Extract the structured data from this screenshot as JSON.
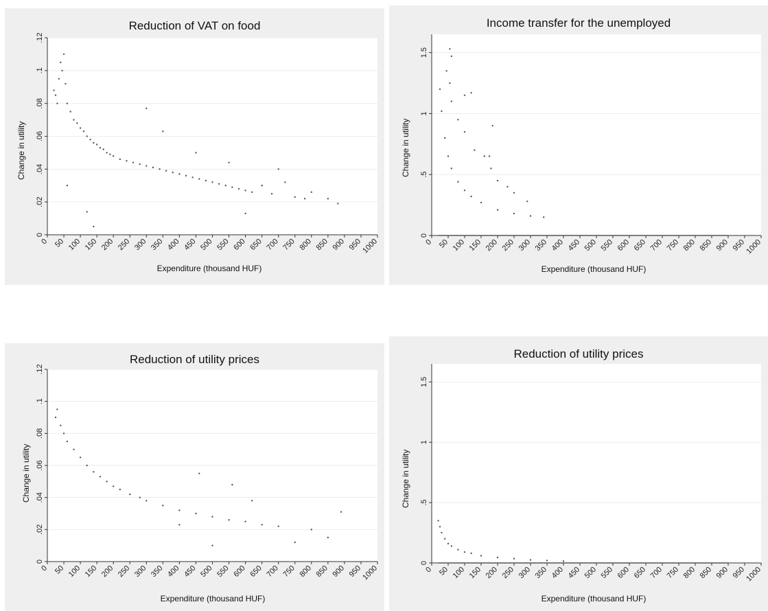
{
  "chart_data": [
    {
      "type": "scatter",
      "title": "Reduction of VAT on food",
      "xlabel": "Expenditure (thousand HUF)",
      "ylabel": "Change in utility",
      "xlim": [
        0,
        1000
      ],
      "ylim": [
        0,
        0.12
      ],
      "x_ticks": [
        "0",
        "50",
        "100",
        "150",
        "200",
        "250",
        "300",
        "350",
        "400",
        "450",
        "500",
        "550",
        "600",
        "650",
        "700",
        "750",
        "800",
        "850",
        "900",
        "950",
        "1000"
      ],
      "y_ticks": [
        "0",
        ".02",
        ".04",
        ".06",
        ".08",
        ".1",
        ".12"
      ],
      "grid": "horizontal",
      "series": [
        {
          "points": [
            [
              20,
              0.088
            ],
            [
              25,
              0.085
            ],
            [
              30,
              0.08
            ],
            [
              35,
              0.095
            ],
            [
              40,
              0.105
            ],
            [
              45,
              0.1
            ],
            [
              50,
              0.11
            ],
            [
              55,
              0.092
            ],
            [
              60,
              0.08
            ],
            [
              70,
              0.075
            ],
            [
              80,
              0.07
            ],
            [
              90,
              0.068
            ],
            [
              100,
              0.065
            ],
            [
              110,
              0.063
            ],
            [
              120,
              0.06
            ],
            [
              130,
              0.058
            ],
            [
              140,
              0.056
            ],
            [
              150,
              0.055
            ],
            [
              160,
              0.053
            ],
            [
              170,
              0.052
            ],
            [
              180,
              0.05
            ],
            [
              190,
              0.049
            ],
            [
              200,
              0.048
            ],
            [
              220,
              0.046
            ],
            [
              240,
              0.045
            ],
            [
              260,
              0.044
            ],
            [
              280,
              0.043
            ],
            [
              300,
              0.042
            ],
            [
              320,
              0.041
            ],
            [
              340,
              0.04
            ],
            [
              360,
              0.039
            ],
            [
              380,
              0.038
            ],
            [
              400,
              0.037
            ],
            [
              420,
              0.036
            ],
            [
              440,
              0.035
            ],
            [
              460,
              0.034
            ],
            [
              480,
              0.033
            ],
            [
              500,
              0.032
            ],
            [
              520,
              0.031
            ],
            [
              540,
              0.03
            ],
            [
              560,
              0.029
            ],
            [
              580,
              0.028
            ],
            [
              600,
              0.027
            ],
            [
              620,
              0.026
            ],
            [
              650,
              0.03
            ],
            [
              680,
              0.025
            ],
            [
              700,
              0.04
            ],
            [
              720,
              0.032
            ],
            [
              750,
              0.023
            ],
            [
              780,
              0.022
            ],
            [
              800,
              0.026
            ],
            [
              850,
              0.022
            ],
            [
              880,
              0.019
            ],
            [
              120,
              0.014
            ],
            [
              140,
              0.005
            ],
            [
              60,
              0.03
            ],
            [
              300,
              0.077
            ],
            [
              350,
              0.063
            ],
            [
              450,
              0.05
            ],
            [
              550,
              0.044
            ],
            [
              600,
              0.013
            ]
          ]
        }
      ]
    },
    {
      "type": "scatter",
      "title": "Income transfer for the unemployed",
      "xlabel": "Expenditure (thousand HUF)",
      "ylabel": "Change in utility",
      "xlim": [
        0,
        1000
      ],
      "ylim": [
        0,
        1.65
      ],
      "x_ticks": [
        "0",
        "50",
        "100",
        "150",
        "200",
        "250",
        "300",
        "350",
        "400",
        "450",
        "500",
        "550",
        "600",
        "650",
        "700",
        "750",
        "800",
        "850",
        "900",
        "950",
        "1000"
      ],
      "y_ticks": [
        "0",
        ".5",
        "1",
        "1.5"
      ],
      "grid": "horizontal",
      "series": [
        {
          "points": [
            [
              25,
              1.2
            ],
            [
              30,
              1.02
            ],
            [
              40,
              0.8
            ],
            [
              50,
              0.65
            ],
            [
              60,
              0.55
            ],
            [
              80,
              0.44
            ],
            [
              100,
              0.37
            ],
            [
              120,
              0.32
            ],
            [
              150,
              0.27
            ],
            [
              200,
              0.21
            ],
            [
              250,
              0.18
            ],
            [
              300,
              0.16
            ],
            [
              340,
              0.15
            ]
          ]
        },
        {
          "points": [
            [
              45,
              1.35
            ],
            [
              55,
              1.25
            ],
            [
              60,
              1.1
            ],
            [
              80,
              0.95
            ],
            [
              100,
              0.85
            ],
            [
              130,
              0.7
            ],
            [
              160,
              0.65
            ],
            [
              180,
              0.55
            ],
            [
              200,
              0.45
            ],
            [
              250,
              0.35
            ],
            [
              290,
              0.28
            ]
          ]
        },
        {
          "points": [
            [
              55,
              1.53
            ],
            [
              60,
              1.47
            ],
            [
              100,
              1.15
            ],
            [
              120,
              1.17
            ],
            [
              185,
              0.9
            ],
            [
              175,
              0.65
            ],
            [
              230,
              0.4
            ]
          ]
        },
        {
          "points": [
            [
              20,
              0
            ],
            [
              900,
              0
            ]
          ]
        }
      ]
    },
    {
      "type": "scatter",
      "title": "Reduction of utility prices",
      "xlabel": "Expenditure (thousand HUF)",
      "ylabel": "Change in utility",
      "xlim": [
        0,
        1000
      ],
      "ylim": [
        0,
        0.12
      ],
      "x_ticks": [
        "0",
        "50",
        "100",
        "150",
        "200",
        "250",
        "300",
        "350",
        "400",
        "450",
        "500",
        "550",
        "600",
        "650",
        "700",
        "750",
        "800",
        "850",
        "900",
        "950",
        "1000"
      ],
      "y_ticks": [
        "0",
        ".02",
        ".04",
        ".06",
        ".08",
        ".1",
        ".12"
      ],
      "grid": "horizontal",
      "series": [
        {
          "points": [
            [
              25,
              0.09
            ],
            [
              30,
              0.095
            ],
            [
              40,
              0.085
            ],
            [
              50,
              0.08
            ],
            [
              60,
              0.075
            ],
            [
              80,
              0.07
            ],
            [
              100,
              0.065
            ],
            [
              120,
              0.06
            ],
            [
              140,
              0.056
            ],
            [
              160,
              0.053
            ],
            [
              180,
              0.05
            ],
            [
              200,
              0.047
            ],
            [
              220,
              0.045
            ],
            [
              250,
              0.042
            ],
            [
              280,
              0.04
            ],
            [
              300,
              0.038
            ],
            [
              350,
              0.035
            ],
            [
              400,
              0.032
            ],
            [
              450,
              0.03
            ],
            [
              500,
              0.028
            ],
            [
              550,
              0.026
            ],
            [
              600,
              0.025
            ],
            [
              650,
              0.023
            ],
            [
              700,
              0.022
            ],
            [
              750,
              0.012
            ],
            [
              800,
              0.02
            ],
            [
              850,
              0.015
            ],
            [
              890,
              0.031
            ],
            [
              460,
              0.055
            ],
            [
              560,
              0.048
            ],
            [
              620,
              0.038
            ],
            [
              400,
              0.023
            ],
            [
              500,
              0.01
            ]
          ]
        }
      ]
    },
    {
      "type": "scatter",
      "title": "Reduction of utility prices",
      "xlabel": "Expenditure (thousand HUF)",
      "ylabel": "Change in utility",
      "xlim": [
        0,
        1000
      ],
      "ylim": [
        0,
        1.65
      ],
      "x_ticks": [
        "0",
        "50",
        "100",
        "150",
        "200",
        "250",
        "300",
        "350",
        "400",
        "450",
        "500",
        "550",
        "600",
        "650",
        "700",
        "750",
        "800",
        "850",
        "900",
        "950",
        "1000"
      ],
      "y_ticks": [
        "0",
        ".5",
        "1",
        "1.5"
      ],
      "grid": "horizontal",
      "series": [
        {
          "points": [
            [
              20,
              0.35
            ],
            [
              25,
              0.3
            ],
            [
              30,
              0.25
            ],
            [
              40,
              0.2
            ],
            [
              50,
              0.16
            ],
            [
              60,
              0.14
            ],
            [
              80,
              0.11
            ],
            [
              100,
              0.09
            ],
            [
              120,
              0.08
            ],
            [
              150,
              0.06
            ],
            [
              200,
              0.045
            ],
            [
              250,
              0.035
            ],
            [
              300,
              0.025
            ],
            [
              350,
              0.02
            ],
            [
              400,
              0.015
            ]
          ]
        },
        {
          "points": [
            [
              20,
              0
            ],
            [
              900,
              0
            ]
          ]
        }
      ]
    }
  ]
}
